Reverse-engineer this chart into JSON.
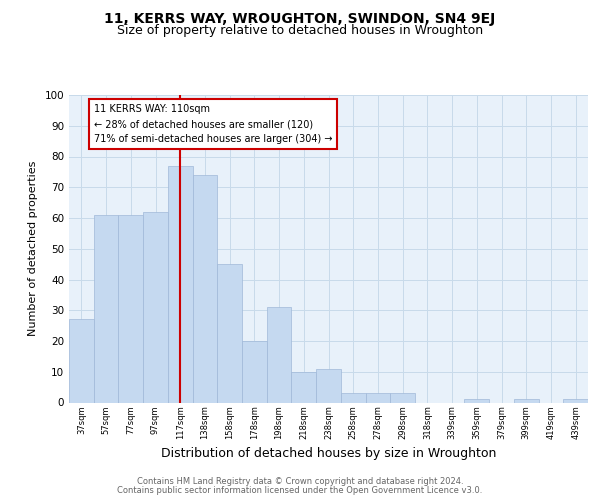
{
  "title1": "11, KERRS WAY, WROUGHTON, SWINDON, SN4 9EJ",
  "title2": "Size of property relative to detached houses in Wroughton",
  "xlabel": "Distribution of detached houses by size in Wroughton",
  "ylabel": "Number of detached properties",
  "bar_labels": [
    "37sqm",
    "57sqm",
    "77sqm",
    "97sqm",
    "117sqm",
    "138sqm",
    "158sqm",
    "178sqm",
    "198sqm",
    "218sqm",
    "238sqm",
    "258sqm",
    "278sqm",
    "298sqm",
    "318sqm",
    "339sqm",
    "359sqm",
    "379sqm",
    "399sqm",
    "419sqm",
    "439sqm"
  ],
  "bar_values": [
    27,
    61,
    61,
    62,
    77,
    74,
    45,
    20,
    31,
    10,
    11,
    3,
    3,
    3,
    0,
    0,
    1,
    0,
    1,
    0,
    1
  ],
  "bar_color": "#c5d9f0",
  "bar_edgecolor": "#a0b8d8",
  "grid_color": "#c8daea",
  "bg_color": "#e8f1fa",
  "vline_x": 4,
  "vline_color": "#cc0000",
  "annotation_text": "11 KERRS WAY: 110sqm\n← 28% of detached houses are smaller (120)\n71% of semi-detached houses are larger (304) →",
  "annotation_box_color": "#ffffff",
  "annotation_box_edgecolor": "#cc0000",
  "footer1": "Contains HM Land Registry data © Crown copyright and database right 2024.",
  "footer2": "Contains public sector information licensed under the Open Government Licence v3.0.",
  "ylim": [
    0,
    100
  ],
  "title1_fontsize": 10,
  "title2_fontsize": 9,
  "xlabel_fontsize": 9,
  "ylabel_fontsize": 8
}
